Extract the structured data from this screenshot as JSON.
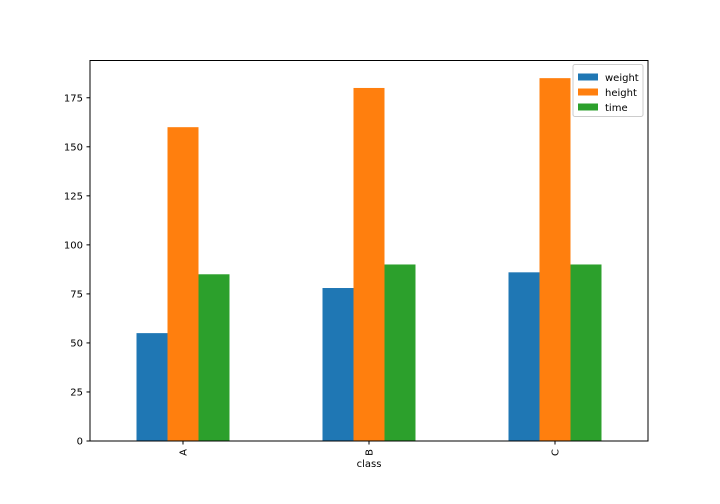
{
  "chart_data": {
    "type": "bar",
    "categories": [
      "A",
      "B",
      "C"
    ],
    "series": [
      {
        "name": "weight",
        "values": [
          55,
          78,
          86
        ],
        "color": "#1f77b4"
      },
      {
        "name": "height",
        "values": [
          160,
          180,
          185
        ],
        "color": "#ff7f0e"
      },
      {
        "name": "time",
        "values": [
          85,
          90,
          90
        ],
        "color": "#2ca02c"
      }
    ],
    "title": "",
    "xlabel": "class",
    "ylabel": "",
    "ylim": [
      0,
      194
    ],
    "yticks": [
      0,
      25,
      50,
      75,
      100,
      125,
      150,
      175
    ],
    "grid": false,
    "legend_position": "top-right",
    "x_tick_rotation": "vertical"
  }
}
